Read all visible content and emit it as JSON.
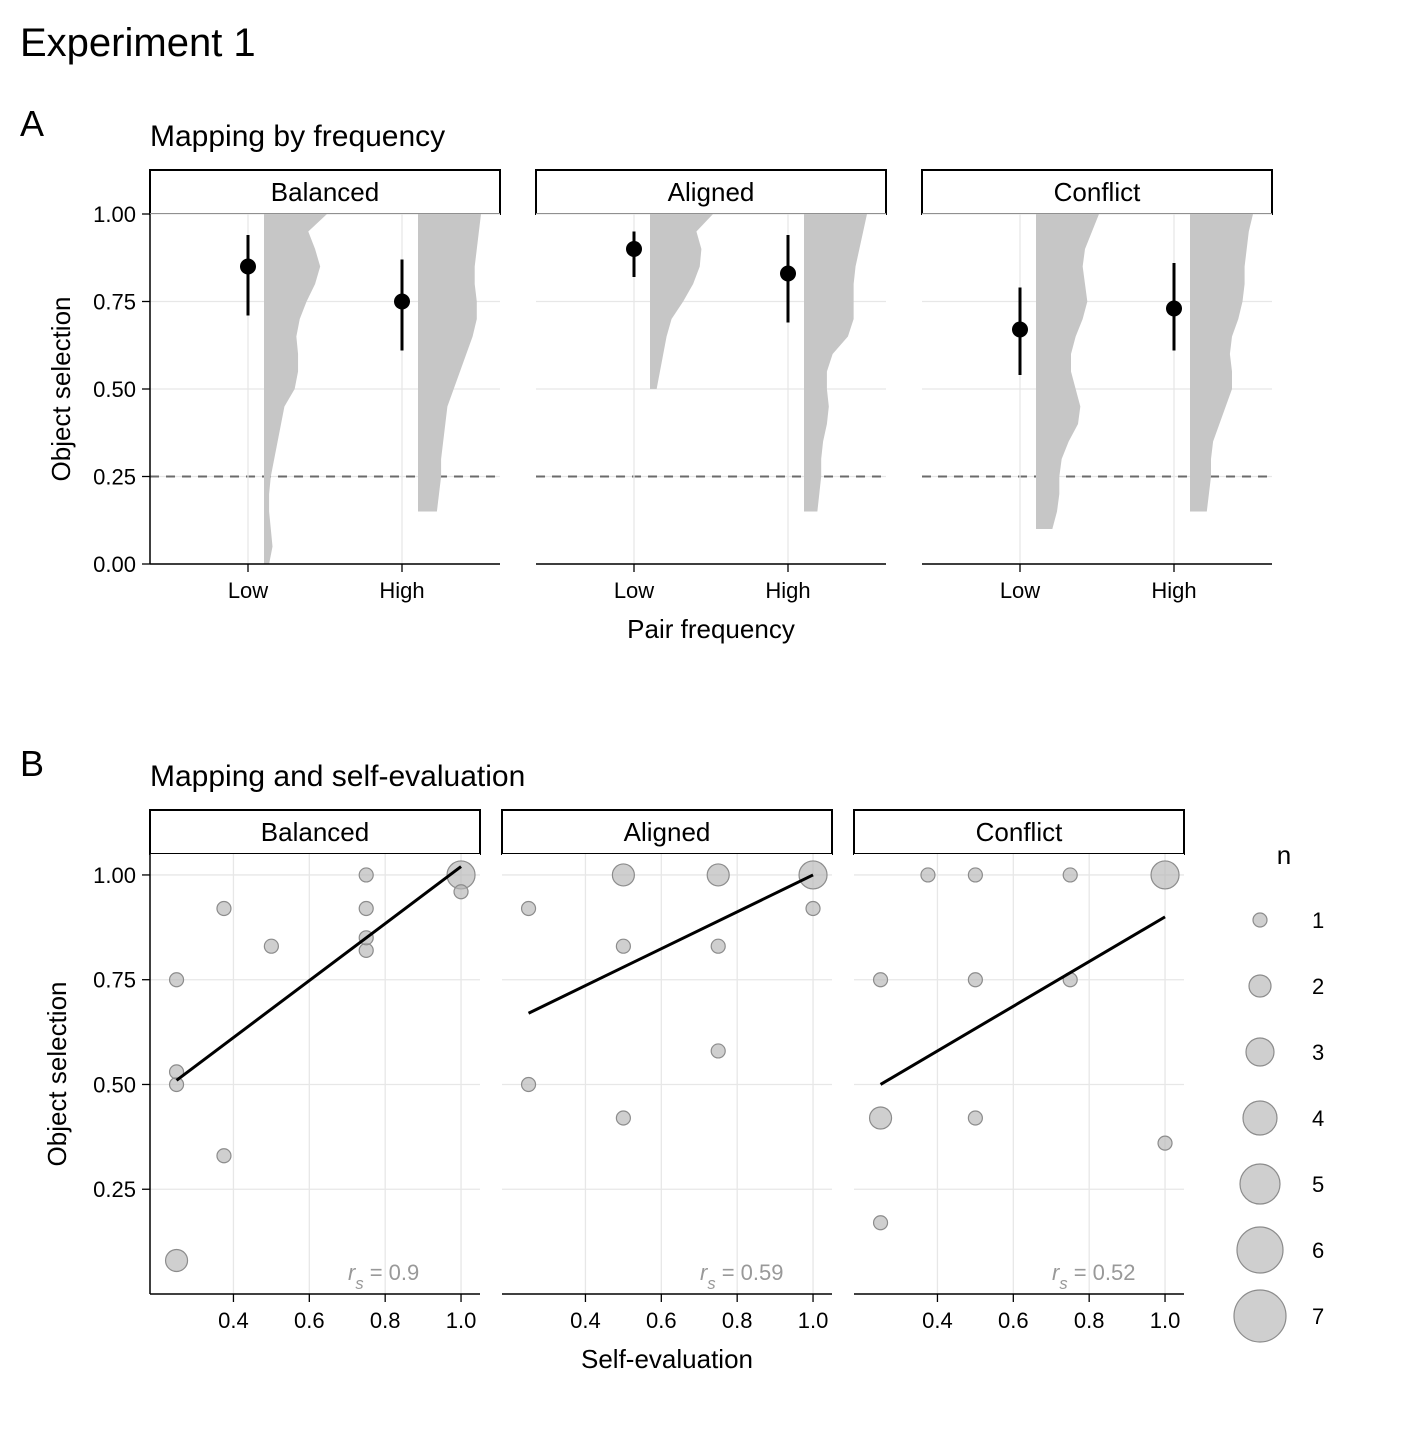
{
  "figure_title": "Experiment 1",
  "panel_A": {
    "label": "A",
    "title": "Mapping by frequency",
    "y_axis_label": "Object selection",
    "x_axis_label": "Pair frequency",
    "y_lim": [
      0,
      1
    ],
    "y_ticks": [
      0,
      0.25,
      0.5,
      0.75,
      1.0
    ],
    "y_tick_labels": [
      "0.00",
      "0.25",
      "0.50",
      "0.75",
      "1.00"
    ],
    "reference_line_y": 0.25,
    "reference_line_style": "dashed",
    "reference_line_color": "#6b6b6b",
    "facets": [
      "Balanced",
      "Aligned",
      "Conflict"
    ],
    "categories": [
      "Low",
      "High"
    ],
    "label_fontsize": 26,
    "title_fontsize": 30,
    "facet_fontsize": 26,
    "axis_tick_fontsize": 22,
    "axis_label_fontsize": 26,
    "point_color": "#000000",
    "point_radius": 8,
    "error_bar_color": "#000000",
    "error_bar_width": 3,
    "violin_fill": "#c6c6c6",
    "violin_stroke": "none",
    "grid_color": "#e7e7e7",
    "grid_width": 1.3,
    "background_color": "#ffffff",
    "facet_border_color": "#000000",
    "data": {
      "Balanced": {
        "Low": {
          "mean": 0.85,
          "ci_lo": 0.71,
          "ci_hi": 0.94,
          "violin": [
            [
              0.0,
              0.03
            ],
            [
              0.05,
              0.05
            ],
            [
              0.1,
              0.04
            ],
            [
              0.15,
              0.03
            ],
            [
              0.2,
              0.03
            ],
            [
              0.25,
              0.04
            ],
            [
              0.3,
              0.06
            ],
            [
              0.35,
              0.08
            ],
            [
              0.4,
              0.1
            ],
            [
              0.45,
              0.12
            ],
            [
              0.5,
              0.18
            ],
            [
              0.55,
              0.2
            ],
            [
              0.6,
              0.2
            ],
            [
              0.65,
              0.19
            ],
            [
              0.7,
              0.21
            ],
            [
              0.75,
              0.25
            ],
            [
              0.8,
              0.3
            ],
            [
              0.85,
              0.33
            ],
            [
              0.9,
              0.3
            ],
            [
              0.95,
              0.26
            ],
            [
              1.0,
              0.37
            ]
          ]
        },
        "High": {
          "mean": 0.75,
          "ci_lo": 0.61,
          "ci_hi": 0.87,
          "violin": [
            [
              0.15,
              0.09
            ],
            [
              0.2,
              0.1
            ],
            [
              0.25,
              0.11
            ],
            [
              0.3,
              0.11
            ],
            [
              0.35,
              0.12
            ],
            [
              0.4,
              0.13
            ],
            [
              0.45,
              0.14
            ],
            [
              0.5,
              0.17
            ],
            [
              0.55,
              0.2
            ],
            [
              0.6,
              0.23
            ],
            [
              0.65,
              0.26
            ],
            [
              0.7,
              0.28
            ],
            [
              0.75,
              0.28
            ],
            [
              0.8,
              0.27
            ],
            [
              0.85,
              0.27
            ],
            [
              0.9,
              0.28
            ],
            [
              0.95,
              0.29
            ],
            [
              1.0,
              0.3
            ]
          ]
        }
      },
      "Aligned": {
        "Low": {
          "mean": 0.9,
          "ci_lo": 0.82,
          "ci_hi": 0.95,
          "violin": [
            [
              0.5,
              0.04
            ],
            [
              0.55,
              0.06
            ],
            [
              0.6,
              0.08
            ],
            [
              0.65,
              0.1
            ],
            [
              0.7,
              0.13
            ],
            [
              0.75,
              0.2
            ],
            [
              0.8,
              0.26
            ],
            [
              0.85,
              0.3
            ],
            [
              0.9,
              0.31
            ],
            [
              0.95,
              0.28
            ],
            [
              1.0,
              0.38
            ]
          ]
        },
        "High": {
          "mean": 0.83,
          "ci_lo": 0.69,
          "ci_hi": 0.94,
          "violin": [
            [
              0.15,
              0.07
            ],
            [
              0.2,
              0.08
            ],
            [
              0.25,
              0.09
            ],
            [
              0.3,
              0.09
            ],
            [
              0.35,
              0.1
            ],
            [
              0.4,
              0.12
            ],
            [
              0.45,
              0.13
            ],
            [
              0.5,
              0.12
            ],
            [
              0.55,
              0.12
            ],
            [
              0.6,
              0.15
            ],
            [
              0.65,
              0.23
            ],
            [
              0.7,
              0.26
            ],
            [
              0.75,
              0.26
            ],
            [
              0.8,
              0.26
            ],
            [
              0.85,
              0.27
            ],
            [
              0.9,
              0.29
            ],
            [
              0.95,
              0.31
            ],
            [
              1.0,
              0.33
            ]
          ]
        }
      },
      "Conflict": {
        "Low": {
          "mean": 0.67,
          "ci_lo": 0.54,
          "ci_hi": 0.79,
          "violin": [
            [
              0.1,
              0.07
            ],
            [
              0.15,
              0.09
            ],
            [
              0.2,
              0.1
            ],
            [
              0.25,
              0.1
            ],
            [
              0.3,
              0.11
            ],
            [
              0.35,
              0.14
            ],
            [
              0.4,
              0.18
            ],
            [
              0.45,
              0.19
            ],
            [
              0.5,
              0.17
            ],
            [
              0.55,
              0.15
            ],
            [
              0.6,
              0.15
            ],
            [
              0.65,
              0.17
            ],
            [
              0.7,
              0.2
            ],
            [
              0.75,
              0.22
            ],
            [
              0.8,
              0.21
            ],
            [
              0.85,
              0.2
            ],
            [
              0.9,
              0.21
            ],
            [
              0.95,
              0.24
            ],
            [
              1.0,
              0.27
            ]
          ]
        },
        "High": {
          "mean": 0.73,
          "ci_lo": 0.61,
          "ci_hi": 0.86,
          "violin": [
            [
              0.15,
              0.08
            ],
            [
              0.2,
              0.09
            ],
            [
              0.25,
              0.1
            ],
            [
              0.3,
              0.1
            ],
            [
              0.35,
              0.11
            ],
            [
              0.4,
              0.14
            ],
            [
              0.45,
              0.17
            ],
            [
              0.5,
              0.2
            ],
            [
              0.55,
              0.2
            ],
            [
              0.6,
              0.19
            ],
            [
              0.65,
              0.2
            ],
            [
              0.7,
              0.23
            ],
            [
              0.75,
              0.25
            ],
            [
              0.8,
              0.26
            ],
            [
              0.85,
              0.26
            ],
            [
              0.9,
              0.27
            ],
            [
              0.95,
              0.28
            ],
            [
              1.0,
              0.3
            ]
          ]
        }
      }
    }
  },
  "panel_B": {
    "label": "B",
    "title": "Mapping and self-evaluation",
    "y_axis_label": "Object selection",
    "x_axis_label": "Self-evaluation",
    "y_lim": [
      0,
      1.05
    ],
    "y_ticks": [
      0.25,
      0.5,
      0.75,
      1.0
    ],
    "y_tick_labels": [
      "0.25",
      "0.50",
      "0.75",
      "1.00"
    ],
    "x_lim": [
      0.18,
      1.05
    ],
    "x_ticks": [
      0.4,
      0.6,
      0.8,
      1.0
    ],
    "x_tick_labels": [
      "0.4",
      "0.6",
      "0.8",
      "1.0"
    ],
    "facets": [
      "Balanced",
      "Aligned",
      "Conflict"
    ],
    "r_label_prefix": "r",
    "r_label_sub": "s",
    "r_label_color": "#999999",
    "r_label_fontsize": 22,
    "title_fontsize": 30,
    "label_fontsize": 26,
    "facet_fontsize": 26,
    "axis_tick_fontsize": 22,
    "axis_label_fontsize": 26,
    "point_fill": "#b6b6b6",
    "point_fill_opacity": 0.65,
    "point_stroke": "#8c8c8c",
    "point_stroke_width": 1.2,
    "reg_line_color": "#000000",
    "reg_line_width": 3,
    "grid_color": "#e7e7e7",
    "grid_width": 1.3,
    "background_color": "#ffffff",
    "facet_border_color": "#000000",
    "legend": {
      "title": "n",
      "title_fontsize": 26,
      "label_fontsize": 22,
      "values": [
        1,
        2,
        3,
        4,
        5,
        6,
        7
      ],
      "size_scale": {
        "1": 7,
        "2": 11,
        "3": 14,
        "4": 17,
        "5": 20,
        "6": 23,
        "7": 26
      }
    },
    "data": {
      "Balanced": {
        "r": "0.9",
        "reg_line": {
          "x1": 0.25,
          "y1": 0.51,
          "x2": 1.0,
          "y2": 1.02
        },
        "points": [
          {
            "x": 0.25,
            "y": 0.5,
            "n": 1
          },
          {
            "x": 0.25,
            "y": 0.53,
            "n": 1
          },
          {
            "x": 0.25,
            "y": 0.08,
            "n": 2
          },
          {
            "x": 0.25,
            "y": 0.75,
            "n": 1
          },
          {
            "x": 0.375,
            "y": 0.92,
            "n": 1
          },
          {
            "x": 0.375,
            "y": 0.33,
            "n": 1
          },
          {
            "x": 0.5,
            "y": 0.83,
            "n": 1
          },
          {
            "x": 0.75,
            "y": 0.82,
            "n": 1
          },
          {
            "x": 0.75,
            "y": 0.85,
            "n": 1
          },
          {
            "x": 0.75,
            "y": 0.92,
            "n": 1
          },
          {
            "x": 0.75,
            "y": 1.0,
            "n": 1
          },
          {
            "x": 1.0,
            "y": 1.0,
            "n": 3
          },
          {
            "x": 1.0,
            "y": 0.96,
            "n": 1
          }
        ]
      },
      "Aligned": {
        "r": "0.59",
        "reg_line": {
          "x1": 0.25,
          "y1": 0.67,
          "x2": 1.0,
          "y2": 1.0
        },
        "points": [
          {
            "x": 0.25,
            "y": 0.92,
            "n": 1
          },
          {
            "x": 0.25,
            "y": 0.5,
            "n": 1
          },
          {
            "x": 0.5,
            "y": 0.83,
            "n": 1
          },
          {
            "x": 0.5,
            "y": 1.0,
            "n": 2
          },
          {
            "x": 0.5,
            "y": 0.42,
            "n": 1
          },
          {
            "x": 0.75,
            "y": 0.58,
            "n": 1
          },
          {
            "x": 0.75,
            "y": 1.0,
            "n": 2
          },
          {
            "x": 0.75,
            "y": 0.83,
            "n": 1
          },
          {
            "x": 1.0,
            "y": 1.0,
            "n": 3
          },
          {
            "x": 1.0,
            "y": 0.92,
            "n": 1
          }
        ]
      },
      "Conflict": {
        "r": "0.52",
        "reg_line": {
          "x1": 0.25,
          "y1": 0.5,
          "x2": 1.0,
          "y2": 0.9
        },
        "points": [
          {
            "x": 0.25,
            "y": 0.42,
            "n": 2
          },
          {
            "x": 0.25,
            "y": 0.17,
            "n": 1
          },
          {
            "x": 0.25,
            "y": 0.75,
            "n": 1
          },
          {
            "x": 0.375,
            "y": 1.0,
            "n": 1
          },
          {
            "x": 0.5,
            "y": 0.42,
            "n": 1
          },
          {
            "x": 0.5,
            "y": 1.0,
            "n": 1
          },
          {
            "x": 0.5,
            "y": 0.75,
            "n": 1
          },
          {
            "x": 0.75,
            "y": 1.0,
            "n": 1
          },
          {
            "x": 0.75,
            "y": 0.75,
            "n": 1
          },
          {
            "x": 1.0,
            "y": 0.36,
            "n": 1
          },
          {
            "x": 1.0,
            "y": 1.0,
            "n": 3
          }
        ]
      }
    }
  }
}
